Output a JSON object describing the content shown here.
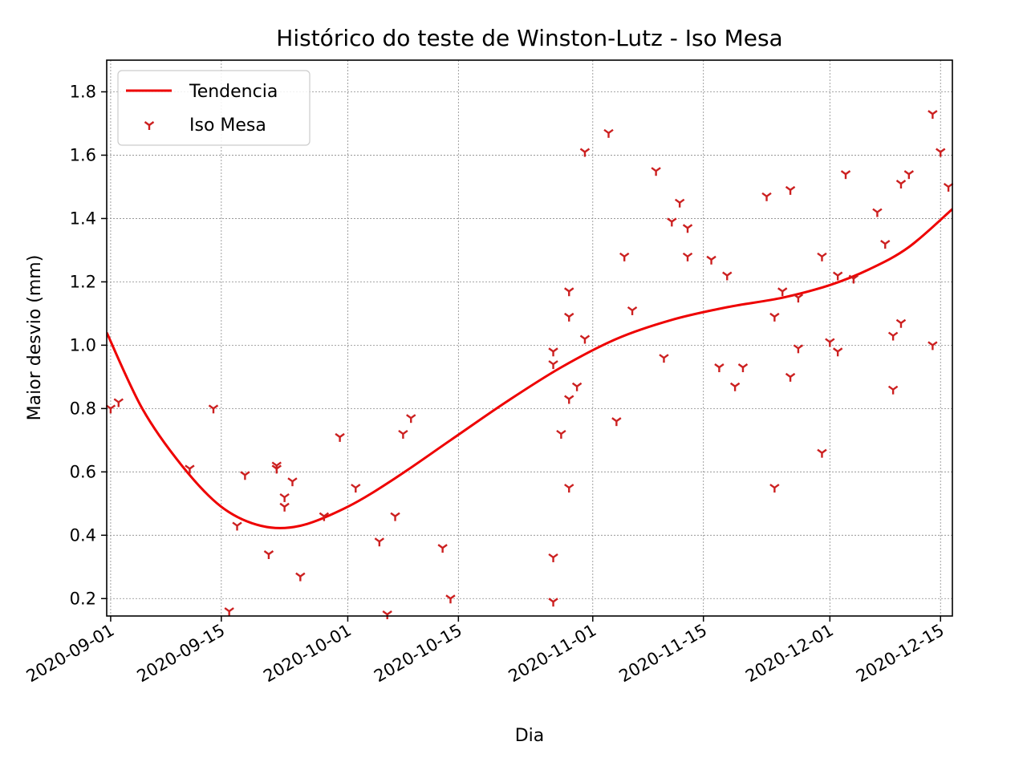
{
  "chart_data": {
    "type": "scatter",
    "title": "Histórico do teste de Winston-Lutz - Iso Mesa",
    "xlabel": "Dia",
    "ylabel": "Maior desvio (mm)",
    "xlim": [
      "2020-08-31T12:00",
      "2020-12-16T12:00"
    ],
    "ylim": [
      0.145,
      1.9
    ],
    "xticks": [
      "2020-09-01",
      "2020-09-15",
      "2020-10-01",
      "2020-10-15",
      "2020-11-01",
      "2020-11-15",
      "2020-12-01",
      "2020-12-15"
    ],
    "yticks": [
      "0.2",
      "0.4",
      "0.6",
      "0.8",
      "1.0",
      "1.2",
      "1.4",
      "1.6",
      "1.8"
    ],
    "grid": true,
    "legend_position": "upper-left",
    "colors": {
      "trend": "#ee0000",
      "points": "#cc2020"
    },
    "series": [
      {
        "name": "Tendencia",
        "kind": "line",
        "x": [
          "2020-08-31T12:00",
          "2020-09-05",
          "2020-09-10",
          "2020-09-15",
          "2020-09-20",
          "2020-09-25",
          "2020-10-01",
          "2020-10-07",
          "2020-10-14",
          "2020-10-21",
          "2020-10-28",
          "2020-11-04",
          "2020-11-11",
          "2020-11-18",
          "2020-11-25",
          "2020-12-01",
          "2020-12-06",
          "2020-12-11",
          "2020-12-16T12:00"
        ],
        "values": [
          1.04,
          0.8,
          0.62,
          0.49,
          0.43,
          0.43,
          0.49,
          0.58,
          0.7,
          0.82,
          0.93,
          1.02,
          1.08,
          1.12,
          1.15,
          1.19,
          1.24,
          1.31,
          1.43
        ]
      },
      {
        "name": "Iso Mesa",
        "kind": "scatter",
        "points": [
          [
            "2020-09-01",
            0.8
          ],
          [
            "2020-09-02",
            0.82
          ],
          [
            "2020-09-11",
            0.61
          ],
          [
            "2020-09-14",
            0.8
          ],
          [
            "2020-09-16",
            0.16
          ],
          [
            "2020-09-17",
            0.43
          ],
          [
            "2020-09-18",
            0.59
          ],
          [
            "2020-09-21",
            0.34
          ],
          [
            "2020-09-22",
            0.62
          ],
          [
            "2020-09-22",
            0.61
          ],
          [
            "2020-09-23",
            0.52
          ],
          [
            "2020-09-23",
            0.49
          ],
          [
            "2020-09-24",
            0.57
          ],
          [
            "2020-09-25",
            0.27
          ],
          [
            "2020-09-28",
            0.46
          ],
          [
            "2020-09-30",
            0.71
          ],
          [
            "2020-10-02",
            0.55
          ],
          [
            "2020-10-05",
            0.38
          ],
          [
            "2020-10-06",
            0.15
          ],
          [
            "2020-10-07",
            0.46
          ],
          [
            "2020-10-08",
            0.72
          ],
          [
            "2020-10-09",
            0.77
          ],
          [
            "2020-10-13",
            0.36
          ],
          [
            "2020-10-14",
            0.2
          ],
          [
            "2020-10-27",
            0.98
          ],
          [
            "2020-10-27",
            0.94
          ],
          [
            "2020-10-27",
            0.33
          ],
          [
            "2020-10-27",
            0.19
          ],
          [
            "2020-10-28",
            0.72
          ],
          [
            "2020-10-29",
            1.17
          ],
          [
            "2020-10-29",
            1.09
          ],
          [
            "2020-10-29",
            0.83
          ],
          [
            "2020-10-29",
            0.55
          ],
          [
            "2020-10-30",
            0.87
          ],
          [
            "2020-10-31",
            1.61
          ],
          [
            "2020-10-31",
            1.02
          ],
          [
            "2020-11-03",
            1.67
          ],
          [
            "2020-11-04",
            0.76
          ],
          [
            "2020-11-05",
            1.28
          ],
          [
            "2020-11-06",
            1.11
          ],
          [
            "2020-11-09",
            1.55
          ],
          [
            "2020-11-10",
            0.96
          ],
          [
            "2020-11-11",
            1.39
          ],
          [
            "2020-11-12",
            1.45
          ],
          [
            "2020-11-13",
            1.37
          ],
          [
            "2020-11-13",
            1.28
          ],
          [
            "2020-11-16",
            1.27
          ],
          [
            "2020-11-17",
            0.93
          ],
          [
            "2020-11-18",
            1.22
          ],
          [
            "2020-11-19",
            0.87
          ],
          [
            "2020-11-20",
            0.93
          ],
          [
            "2020-11-23",
            1.47
          ],
          [
            "2020-11-24",
            1.09
          ],
          [
            "2020-11-24",
            0.55
          ],
          [
            "2020-11-25",
            1.17
          ],
          [
            "2020-11-26",
            1.49
          ],
          [
            "2020-11-26",
            0.9
          ],
          [
            "2020-11-27",
            1.15
          ],
          [
            "2020-11-27",
            0.99
          ],
          [
            "2020-11-30",
            1.28
          ],
          [
            "2020-11-30",
            0.66
          ],
          [
            "2020-12-01",
            1.01
          ],
          [
            "2020-12-02",
            1.22
          ],
          [
            "2020-12-02",
            0.98
          ],
          [
            "2020-12-03",
            1.54
          ],
          [
            "2020-12-04",
            1.21
          ],
          [
            "2020-12-07",
            1.42
          ],
          [
            "2020-12-08",
            1.32
          ],
          [
            "2020-12-09",
            1.03
          ],
          [
            "2020-12-09",
            0.86
          ],
          [
            "2020-12-10",
            1.51
          ],
          [
            "2020-12-10",
            1.07
          ],
          [
            "2020-12-11",
            1.54
          ],
          [
            "2020-12-14",
            1.73
          ],
          [
            "2020-12-14",
            1.0
          ],
          [
            "2020-12-15",
            1.61
          ],
          [
            "2020-12-16",
            1.5
          ]
        ]
      }
    ]
  }
}
